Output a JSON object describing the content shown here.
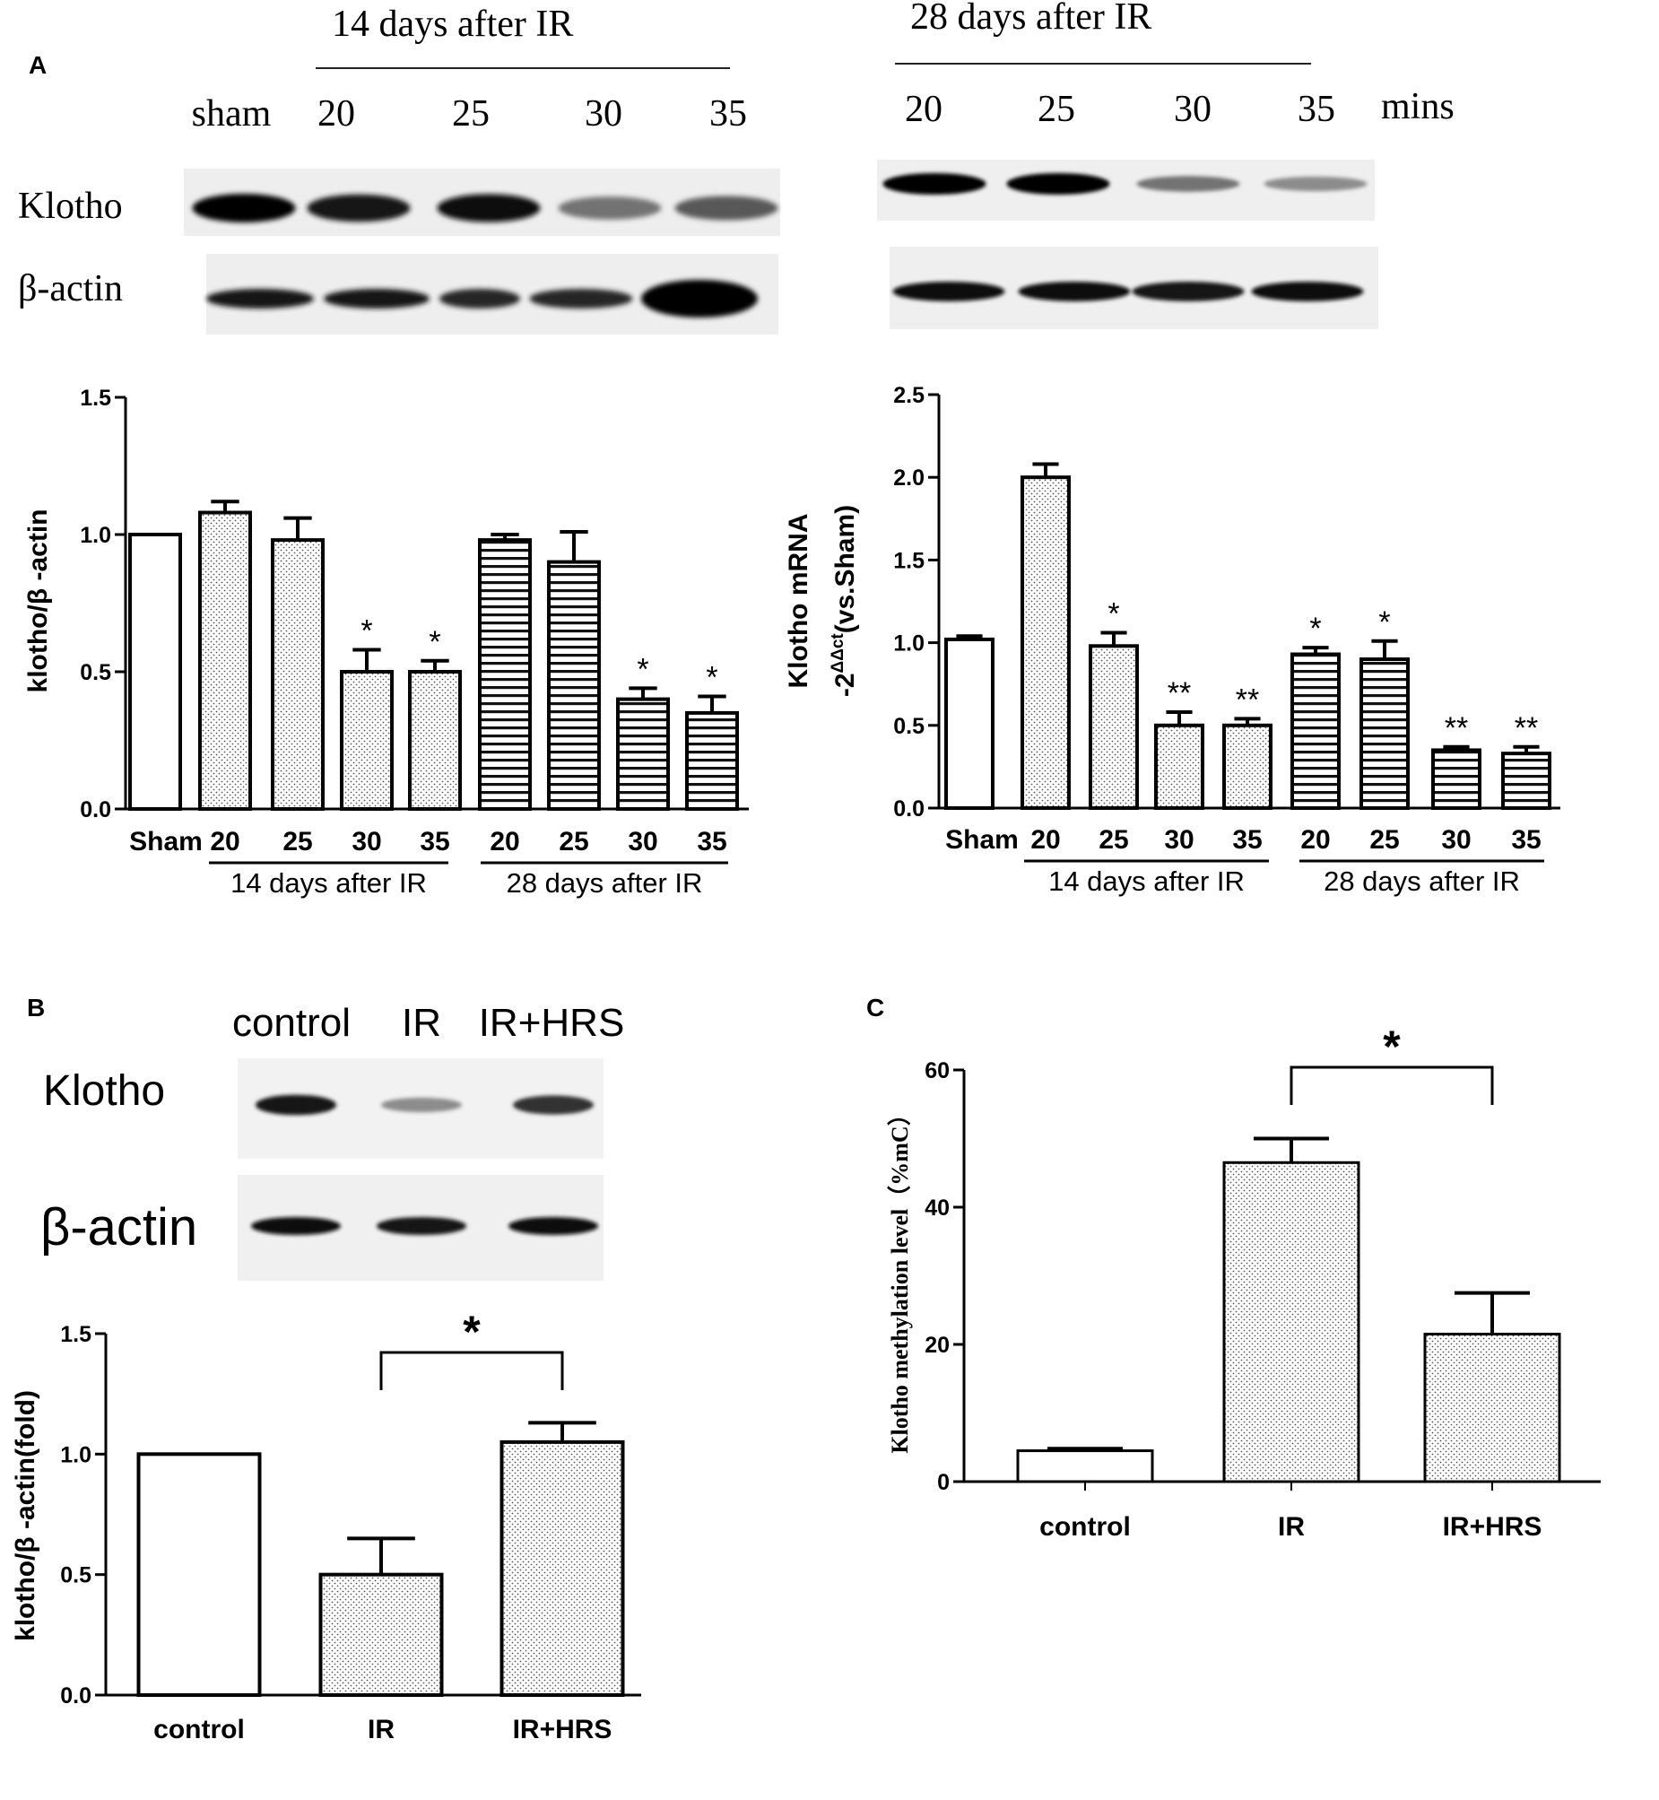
{
  "panels": {
    "a": "A",
    "b": "B",
    "c": "C"
  },
  "blot_a": {
    "left_header": "14 days after IR",
    "right_header": "28 days after IR",
    "left_lanes": [
      "sham",
      "20",
      "25",
      "30",
      "35"
    ],
    "right_lanes": [
      "20",
      "25",
      "30",
      "35"
    ],
    "unit": "mins",
    "row_labels": [
      "Klotho",
      "β-actin"
    ],
    "left_klotho_intensity": [
      1.0,
      0.9,
      0.95,
      0.55,
      0.65
    ],
    "left_actin_intensity": [
      0.9,
      0.9,
      0.85,
      0.85,
      1.0
    ],
    "right_klotho_intensity": [
      1.0,
      1.0,
      0.55,
      0.45
    ],
    "right_actin_intensity": [
      0.95,
      0.95,
      0.9,
      0.95
    ]
  },
  "blot_b": {
    "lanes": [
      "control",
      "IR",
      "IR+HRS"
    ],
    "row_labels": [
      "Klotho",
      "β-actin"
    ],
    "klotho_intensity": [
      0.9,
      0.45,
      0.8
    ],
    "actin_intensity": [
      0.95,
      0.9,
      0.95
    ]
  },
  "chart_data": [
    {
      "type": "bar",
      "ylabel": "klotho/β -actin",
      "ylim": [
        0,
        1.5
      ],
      "yticks": [
        "0.0",
        "0.5",
        "1.0",
        "1.5"
      ],
      "categories": [
        "Sham",
        "20",
        "25",
        "30",
        "35",
        "20",
        "25",
        "30",
        "35"
      ],
      "groups": [
        "14 days after IR",
        "28 days after IR"
      ],
      "values": [
        1.0,
        1.08,
        0.98,
        0.5,
        0.5,
        0.98,
        0.9,
        0.4,
        0.35
      ],
      "errors": [
        0.0,
        0.04,
        0.08,
        0.08,
        0.04,
        0.02,
        0.11,
        0.04,
        0.06
      ],
      "patterns": [
        "none",
        "dots",
        "dots",
        "dots",
        "dots",
        "hlines",
        "hlines",
        "hlines",
        "hlines"
      ],
      "significance": [
        "",
        "",
        "",
        "*",
        "*",
        "",
        "",
        "*",
        "*"
      ]
    },
    {
      "type": "bar",
      "ylabel": "Klotho mRNA",
      "ylabel2": "-2",
      "ylabel2_sup": "ΔΔct",
      "ylabel2_rest": "(vs.Sham)",
      "ylim": [
        0,
        2.5
      ],
      "yticks": [
        "0.0",
        "0.5",
        "1.0",
        "1.5",
        "2.0",
        "2.5"
      ],
      "categories": [
        "Sham",
        "20",
        "25",
        "30",
        "35",
        "20",
        "25",
        "30",
        "35"
      ],
      "groups": [
        "14 days after IR",
        "28 days after IR"
      ],
      "values": [
        1.02,
        2.0,
        0.98,
        0.5,
        0.5,
        0.93,
        0.9,
        0.35,
        0.33
      ],
      "errors": [
        0.02,
        0.08,
        0.08,
        0.08,
        0.04,
        0.04,
        0.11,
        0.02,
        0.04
      ],
      "patterns": [
        "none",
        "dots",
        "dots",
        "dots",
        "dots",
        "hlines",
        "hlines",
        "hlines",
        "hlines"
      ],
      "significance": [
        "",
        "",
        "*",
        "**",
        "**",
        "*",
        "*",
        "**",
        "**"
      ]
    },
    {
      "type": "bar",
      "ylabel": "klotho/β -actin(fold)",
      "ylim": [
        0,
        1.5
      ],
      "yticks": [
        "0.0",
        "0.5",
        "1.0",
        "1.5"
      ],
      "categories": [
        "control",
        "IR",
        "IR+HRS"
      ],
      "values": [
        1.0,
        0.5,
        1.05
      ],
      "errors": [
        0.0,
        0.15,
        0.08
      ],
      "patterns": [
        "none",
        "dots",
        "dots"
      ],
      "bracket": {
        "from": 1,
        "to": 2,
        "label": "*"
      }
    },
    {
      "type": "bar",
      "ylabel": "Klotho methylation level（%mC）",
      "ylim": [
        0,
        60
      ],
      "yticks": [
        "0",
        "20",
        "40",
        "60"
      ],
      "categories": [
        "control",
        "IR",
        "IR+HRS"
      ],
      "values": [
        4.5,
        46.5,
        21.5
      ],
      "errors": [
        0.3,
        3.5,
        6.0
      ],
      "patterns": [
        "none",
        "dots",
        "dots"
      ],
      "bracket": {
        "from": 1,
        "to": 2,
        "label": "*"
      }
    }
  ]
}
